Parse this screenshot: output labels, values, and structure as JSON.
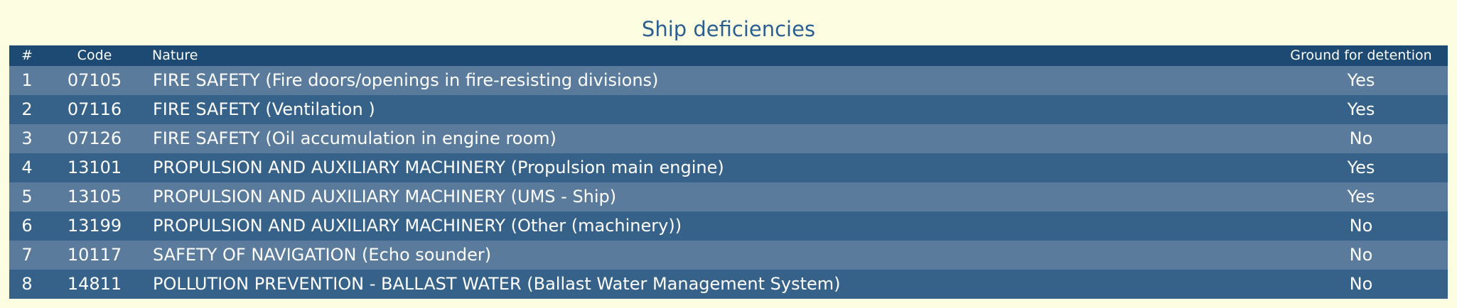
{
  "page": {
    "title": "Ship deficiencies"
  },
  "table": {
    "headers": {
      "num": "#",
      "code": "Code",
      "nature": "Nature",
      "ground": "Ground for detention"
    },
    "rows": [
      {
        "num": "1",
        "code": "07105",
        "nature": "FIRE SAFETY (Fire doors/openings in fire-resisting divisions)",
        "ground": "Yes"
      },
      {
        "num": "2",
        "code": "07116",
        "nature": "FIRE SAFETY (Ventilation )",
        "ground": "Yes"
      },
      {
        "num": "3",
        "code": "07126",
        "nature": "FIRE SAFETY (Oil accumulation in engine room)",
        "ground": "No"
      },
      {
        "num": "4",
        "code": "13101",
        "nature": "PROPULSION AND AUXILIARY MACHINERY (Propulsion main engine)",
        "ground": "Yes"
      },
      {
        "num": "5",
        "code": "13105",
        "nature": "PROPULSION AND AUXILIARY MACHINERY (UMS - Ship)",
        "ground": "Yes"
      },
      {
        "num": "6",
        "code": "13199",
        "nature": "PROPULSION AND AUXILIARY MACHINERY (Other (machinery))",
        "ground": "No"
      },
      {
        "num": "7",
        "code": "10117",
        "nature": "SAFETY OF NAVIGATION (Echo sounder)",
        "ground": "No"
      },
      {
        "num": "8",
        "code": "14811",
        "nature": "POLLUTION PREVENTION - BALLAST WATER (Ballast Water Management System)",
        "ground": "No"
      }
    ]
  },
  "colors": {
    "background": "#fdfde2",
    "title": "#2b5f91",
    "header": "#1d4a73",
    "row_light": "#5a7b9c",
    "row_dark": "#36628a"
  }
}
